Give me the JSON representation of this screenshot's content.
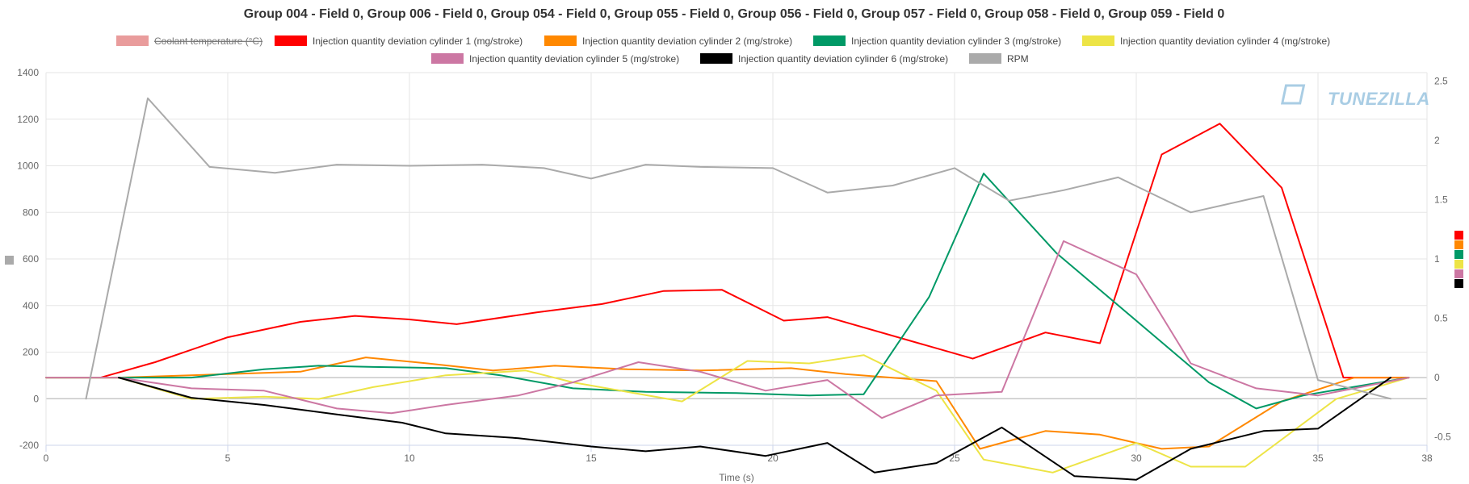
{
  "chart_data": {
    "type": "line",
    "title": "Group 004 - Field 0, Group 006 - Field 0, Group 054 - Field 0, Group 055 - Field 0, Group 056 - Field 0, Group 057 - Field 0, Group 058 - Field 0, Group 059 - Field 0",
    "xlabel": "Time (s)",
    "xlim": [
      0,
      38
    ],
    "x_ticks": [
      "0",
      "5",
      "10",
      "15",
      "20",
      "25",
      "30",
      "35",
      "38"
    ],
    "y_left_lim": [
      -200,
      1400
    ],
    "y_left_ticks": [
      "-200",
      "0",
      "200",
      "400",
      "600",
      "800",
      "1000",
      "1200",
      "1400"
    ],
    "y_right_lim": [
      -0.57,
      2.57
    ],
    "y_right_ticks": [
      "-0.5",
      "0",
      "0.5",
      "1",
      "1.5",
      "2",
      "2.5"
    ],
    "grid": true,
    "legend_position": "top",
    "watermark": "TUNEZILLA",
    "series": [
      {
        "name": "Coolant temperature (°C)",
        "color": "#e99c9c",
        "axis": "left",
        "visible": false,
        "points": []
      },
      {
        "name": "Injection quantity deviation cylinder 1 (mg/stroke)",
        "color": "#ff0000",
        "axis": "right",
        "visible": true,
        "points": [
          [
            1.5,
            0
          ],
          [
            3,
            0.13
          ],
          [
            5,
            0.34
          ],
          [
            7,
            0.47
          ],
          [
            8.5,
            0.52
          ],
          [
            10,
            0.49
          ],
          [
            11.3,
            0.45
          ],
          [
            13.5,
            0.55
          ],
          [
            15.3,
            0.62
          ],
          [
            17,
            0.73
          ],
          [
            18.6,
            0.74
          ],
          [
            20.3,
            0.48
          ],
          [
            21.5,
            0.51
          ],
          [
            25.5,
            0.16
          ],
          [
            27.5,
            0.38
          ],
          [
            29,
            0.29
          ],
          [
            30.7,
            1.88
          ],
          [
            32.3,
            2.14
          ],
          [
            34,
            1.6
          ],
          [
            35.7,
            0
          ],
          [
            37.5,
            0
          ]
        ]
      },
      {
        "name": "Injection quantity deviation cylinder 2 (mg/stroke)",
        "color": "#ff8800",
        "axis": "right",
        "visible": true,
        "points": [
          [
            0,
            0
          ],
          [
            2,
            0
          ],
          [
            5,
            0.03
          ],
          [
            7,
            0.05
          ],
          [
            8.8,
            0.17
          ],
          [
            10.5,
            0.12
          ],
          [
            12.3,
            0.06
          ],
          [
            14,
            0.1
          ],
          [
            16,
            0.07
          ],
          [
            18,
            0.06
          ],
          [
            20.5,
            0.08
          ],
          [
            22,
            0.03
          ],
          [
            24.5,
            -0.03
          ],
          [
            25.7,
            -0.6
          ],
          [
            27.5,
            -0.45
          ],
          [
            29,
            -0.48
          ],
          [
            30.7,
            -0.6
          ],
          [
            32,
            -0.58
          ],
          [
            34,
            -0.2
          ],
          [
            36,
            0
          ],
          [
            37.5,
            0
          ]
        ]
      },
      {
        "name": "Injection quantity deviation cylinder 3 (mg/stroke)",
        "color": "#009966",
        "axis": "right",
        "visible": true,
        "points": [
          [
            0,
            0
          ],
          [
            2,
            0
          ],
          [
            4,
            0
          ],
          [
            6,
            0.07
          ],
          [
            7.5,
            0.1
          ],
          [
            9,
            0.09
          ],
          [
            11,
            0.08
          ],
          [
            12.5,
            0.02
          ],
          [
            14.5,
            -0.09
          ],
          [
            16.5,
            -0.12
          ],
          [
            19,
            -0.13
          ],
          [
            21,
            -0.15
          ],
          [
            22.5,
            -0.14
          ],
          [
            24.3,
            0.68
          ],
          [
            25.8,
            1.72
          ],
          [
            27.8,
            1.05
          ],
          [
            30.5,
            0.35
          ],
          [
            32,
            -0.04
          ],
          [
            33.3,
            -0.26
          ],
          [
            34.6,
            -0.15
          ],
          [
            37.5,
            0
          ]
        ]
      },
      {
        "name": "Injection quantity deviation cylinder 4 (mg/stroke)",
        "color": "#ede446",
        "axis": "right",
        "visible": true,
        "points": [
          [
            0,
            0
          ],
          [
            2,
            0
          ],
          [
            4,
            -0.18
          ],
          [
            6,
            -0.16
          ],
          [
            7.5,
            -0.18
          ],
          [
            9,
            -0.08
          ],
          [
            11,
            0.02
          ],
          [
            13.2,
            0.06
          ],
          [
            14.5,
            -0.04
          ],
          [
            17.5,
            -0.2
          ],
          [
            19.3,
            0.14
          ],
          [
            21,
            0.12
          ],
          [
            22.5,
            0.19
          ],
          [
            24.5,
            -0.11
          ],
          [
            25.8,
            -0.69
          ],
          [
            27.7,
            -0.8
          ],
          [
            30,
            -0.55
          ],
          [
            31.5,
            -0.75
          ],
          [
            33,
            -0.75
          ],
          [
            35.5,
            -0.18
          ],
          [
            37.5,
            0
          ]
        ]
      },
      {
        "name": "Injection quantity deviation cylinder 5 (mg/stroke)",
        "color": "#cc77a3",
        "axis": "right",
        "visible": true,
        "points": [
          [
            0,
            0
          ],
          [
            2,
            0
          ],
          [
            4,
            -0.09
          ],
          [
            6,
            -0.11
          ],
          [
            8,
            -0.26
          ],
          [
            9.5,
            -0.3
          ],
          [
            11,
            -0.23
          ],
          [
            13,
            -0.15
          ],
          [
            14.5,
            -0.04
          ],
          [
            16.3,
            0.13
          ],
          [
            18,
            0.05
          ],
          [
            19.8,
            -0.11
          ],
          [
            21.5,
            -0.02
          ],
          [
            23,
            -0.34
          ],
          [
            24.5,
            -0.15
          ],
          [
            26.3,
            -0.12
          ],
          [
            28,
            1.15
          ],
          [
            30,
            0.87
          ],
          [
            31.5,
            0.12
          ],
          [
            33.3,
            -0.09
          ],
          [
            35,
            -0.15
          ],
          [
            37.5,
            0
          ]
        ]
      },
      {
        "name": "Injection quantity deviation cylinder 6 (mg/stroke)",
        "color": "#000000",
        "axis": "right",
        "visible": true,
        "points": [
          [
            2,
            0
          ],
          [
            4,
            -0.17
          ],
          [
            6,
            -0.23
          ],
          [
            8,
            -0.31
          ],
          [
            9.8,
            -0.38
          ],
          [
            11,
            -0.47
          ],
          [
            13,
            -0.51
          ],
          [
            15,
            -0.58
          ],
          [
            16.5,
            -0.62
          ],
          [
            18,
            -0.58
          ],
          [
            19.8,
            -0.66
          ],
          [
            21.5,
            -0.55
          ],
          [
            22.8,
            -0.8
          ],
          [
            24.5,
            -0.72
          ],
          [
            26.3,
            -0.42
          ],
          [
            28.3,
            -0.83
          ],
          [
            30,
            -0.86
          ],
          [
            31.5,
            -0.6
          ],
          [
            33.5,
            -0.45
          ],
          [
            35,
            -0.43
          ],
          [
            37,
            0
          ]
        ]
      },
      {
        "name": "RPM",
        "color": "#aaaaaa",
        "axis": "left",
        "visible": true,
        "points": [
          [
            1.1,
            0
          ],
          [
            2.8,
            1290
          ],
          [
            4.5,
            995
          ],
          [
            6.3,
            970
          ],
          [
            8,
            1005
          ],
          [
            10,
            1000
          ],
          [
            12,
            1005
          ],
          [
            13.7,
            990
          ],
          [
            15,
            945
          ],
          [
            16.5,
            1005
          ],
          [
            18,
            995
          ],
          [
            20,
            990
          ],
          [
            21.5,
            885
          ],
          [
            23.3,
            915
          ],
          [
            25,
            990
          ],
          [
            26.5,
            850
          ],
          [
            28,
            895
          ],
          [
            29.5,
            950
          ],
          [
            31.5,
            800
          ],
          [
            33.5,
            870
          ],
          [
            35,
            80
          ],
          [
            37,
            0
          ]
        ]
      }
    ]
  }
}
